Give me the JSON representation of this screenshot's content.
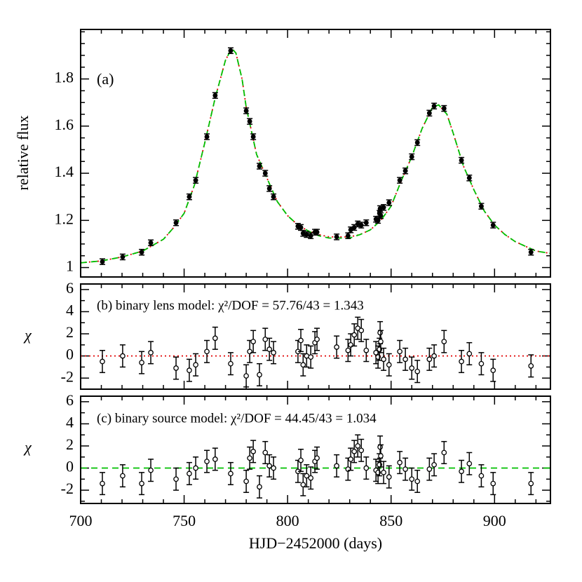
{
  "chart_data": [
    {
      "type": "errorbar",
      "ylabel": "relative flux",
      "annotation": "(a)",
      "marker": "filled",
      "color": "#000000",
      "xlim": [
        700,
        927
      ],
      "xticks": [
        700,
        750,
        800,
        850,
        900
      ],
      "xminor": 10,
      "show_xtick_labels": false,
      "ylim": [
        0.96,
        2.01
      ],
      "yticks": [
        1,
        1.2,
        1.4,
        1.6,
        1.8
      ],
      "yminor": 0.05,
      "x": [
        710.5,
        720.3,
        729.5,
        733.9,
        746.1,
        752.5,
        755.6,
        761,
        765,
        772.5,
        780,
        781.7,
        783.4,
        786.4,
        789.2,
        791.2,
        793.2,
        805,
        806.4,
        807.5,
        809.2,
        811.2,
        813.2,
        814.2,
        823.7,
        829.2,
        830.5,
        832.2,
        833.9,
        835.6,
        838,
        842.7,
        843.7,
        844.4,
        844.7,
        845,
        846.4,
        849,
        854.2,
        856.9,
        860,
        862.7,
        868.5,
        870.8,
        875.6,
        884,
        887.8,
        893.6,
        899.3,
        917.6
      ],
      "values": [
        1.025,
        1.045,
        1.065,
        1.105,
        1.19,
        1.3,
        1.37,
        1.555,
        1.73,
        1.92,
        1.665,
        1.62,
        1.555,
        1.43,
        1.4,
        1.335,
        1.3,
        1.175,
        1.17,
        1.145,
        1.14,
        1.135,
        1.15,
        1.15,
        1.13,
        1.135,
        1.16,
        1.17,
        1.185,
        1.18,
        1.19,
        1.205,
        1.2,
        1.23,
        1.25,
        1.22,
        1.255,
        1.275,
        1.37,
        1.41,
        1.47,
        1.53,
        1.655,
        1.685,
        1.675,
        1.455,
        1.38,
        1.26,
        1.18,
        1.065
      ],
      "errors": [
        0.012,
        0.012,
        0.012,
        0.012,
        0.012,
        0.012,
        0.012,
        0.012,
        0.012,
        0.012,
        0.012,
        0.012,
        0.012,
        0.012,
        0.012,
        0.012,
        0.012,
        0.012,
        0.012,
        0.012,
        0.012,
        0.012,
        0.012,
        0.012,
        0.012,
        0.012,
        0.012,
        0.012,
        0.012,
        0.012,
        0.012,
        0.012,
        0.012,
        0.012,
        0.012,
        0.012,
        0.012,
        0.012,
        0.012,
        0.012,
        0.012,
        0.012,
        0.012,
        0.012,
        0.012,
        0.012,
        0.012,
        0.012,
        0.012,
        0.012
      ],
      "model_x": [
        700,
        710,
        720,
        730,
        740,
        745,
        750,
        755,
        760,
        765,
        770,
        773,
        775,
        778,
        780,
        785,
        790,
        795,
        800,
        805,
        810,
        815,
        820,
        830,
        835,
        840,
        845,
        850,
        855,
        860,
        865,
        870,
        873,
        877,
        880,
        885,
        890,
        895,
        900,
        905,
        910,
        920,
        927
      ],
      "models": [
        {
          "color": "#e00000",
          "dash": "dotted",
          "values": [
            1.02,
            1.028,
            1.045,
            1.07,
            1.12,
            1.17,
            1.23,
            1.35,
            1.53,
            1.72,
            1.88,
            1.93,
            1.91,
            1.8,
            1.68,
            1.48,
            1.38,
            1.28,
            1.22,
            1.18,
            1.155,
            1.14,
            1.13,
            1.13,
            1.14,
            1.16,
            1.2,
            1.26,
            1.37,
            1.47,
            1.59,
            1.68,
            1.69,
            1.65,
            1.57,
            1.43,
            1.33,
            1.24,
            1.18,
            1.14,
            1.11,
            1.07,
            1.06
          ]
        },
        {
          "color": "#00c000",
          "dash": "dashed",
          "values": [
            1.02,
            1.028,
            1.045,
            1.07,
            1.12,
            1.17,
            1.23,
            1.35,
            1.53,
            1.72,
            1.88,
            1.93,
            1.91,
            1.8,
            1.68,
            1.48,
            1.38,
            1.28,
            1.22,
            1.18,
            1.155,
            1.135,
            1.125,
            1.125,
            1.14,
            1.16,
            1.2,
            1.26,
            1.37,
            1.47,
            1.59,
            1.68,
            1.69,
            1.65,
            1.57,
            1.43,
            1.33,
            1.24,
            1.18,
            1.14,
            1.11,
            1.07,
            1.06
          ]
        }
      ]
    },
    {
      "type": "errorbar",
      "ylabel": "χ",
      "annotation": "(b) binary lens model: χ²/DOF = 57.76/43 = 1.343",
      "marker": "open",
      "color": "#000000",
      "xlim": [
        700,
        927
      ],
      "xticks": [
        700,
        750,
        800,
        850,
        900
      ],
      "xminor": 10,
      "show_xtick_labels": false,
      "ylim": [
        -3,
        6.5
      ],
      "yticks": [
        -2,
        0,
        2,
        4,
        6
      ],
      "yminor": 1,
      "x": [
        710.5,
        720.3,
        729.5,
        733.9,
        746.1,
        752.5,
        755.6,
        761,
        765,
        772.5,
        780,
        781.7,
        783.4,
        786.4,
        789.2,
        791.2,
        793.2,
        805,
        806.4,
        807.5,
        809.2,
        811.2,
        813.2,
        814.2,
        823.7,
        829.2,
        830.5,
        832.2,
        833.9,
        835.6,
        838,
        842.7,
        843.7,
        844.4,
        844.7,
        845,
        846.4,
        849,
        854.2,
        856.9,
        860,
        862.7,
        868.5,
        870.8,
        875.6,
        884,
        887.8,
        893.6,
        899.3,
        917.6
      ],
      "values": [
        -0.5,
        0,
        -0.6,
        0.3,
        -1.1,
        -1.3,
        -0.8,
        0.4,
        1.6,
        -0.7,
        -1.8,
        0.4,
        1.3,
        -1.7,
        1.5,
        0.6,
        0.3,
        0.4,
        1.4,
        -0.8,
        0,
        -0.1,
        1.2,
        1.5,
        0.8,
        0.5,
        1,
        1.9,
        2.5,
        2.3,
        0.5,
        0.3,
        -0.1,
        0.6,
        2.1,
        1.3,
        -0.3,
        -0.8,
        0.4,
        -0.3,
        -1.1,
        -1.4,
        -0.3,
        0,
        1.3,
        -0.5,
        0.2,
        -0.7,
        -1.3,
        -0.9
      ],
      "errors": [
        1,
        1,
        1,
        1,
        1,
        1,
        1,
        1,
        1,
        1,
        1,
        1,
        1,
        1,
        1,
        1,
        1,
        1,
        1,
        1,
        1,
        1,
        1,
        1,
        1,
        1,
        1,
        1,
        1,
        1,
        1,
        1,
        1,
        1,
        1,
        1,
        1,
        1,
        1,
        1,
        1,
        1,
        1,
        1,
        1,
        1,
        1,
        1,
        1,
        1
      ],
      "zero_line": {
        "value": 0,
        "color": "#e00000",
        "dash": "dotted"
      }
    },
    {
      "type": "errorbar",
      "ylabel": "χ",
      "xlabel": "HJD−2452000 (days)",
      "annotation": "(c) binary source model: χ²/DOF = 44.45/43 = 1.034",
      "marker": "open",
      "color": "#000000",
      "xlim": [
        700,
        927
      ],
      "xticks": [
        700,
        750,
        800,
        850,
        900
      ],
      "xminor": 10,
      "show_xtick_labels": true,
      "ylim": [
        -3.2,
        6.5
      ],
      "yticks": [
        -2,
        0,
        2,
        4,
        6
      ],
      "yminor": 1,
      "x": [
        710.5,
        720.3,
        729.5,
        733.9,
        746.1,
        752.5,
        755.6,
        761,
        765,
        772.5,
        780,
        781.7,
        783.4,
        786.4,
        789.2,
        791.2,
        793.2,
        805,
        806.4,
        807.5,
        809.2,
        811.2,
        813.2,
        814.2,
        823.7,
        829.2,
        830.5,
        832.2,
        833.9,
        835.6,
        838,
        842.7,
        843.7,
        844.4,
        844.7,
        845,
        846.4,
        849,
        854.2,
        856.9,
        860,
        862.7,
        868.5,
        870.8,
        875.6,
        884,
        887.8,
        893.6,
        899.3,
        917.6
      ],
      "values": [
        -1.4,
        -0.7,
        -1.4,
        -0.2,
        -1,
        -0.5,
        0,
        0.6,
        0.8,
        -0.5,
        -1.2,
        0.9,
        1.5,
        -1.7,
        1.4,
        0.2,
        0,
        -0.3,
        0.7,
        -1.5,
        -0.7,
        -0.9,
        0.6,
        0.9,
        0.2,
        -0.1,
        0.8,
        1.5,
        2,
        1.6,
        0,
        -0.2,
        -0.4,
        0.3,
        1.9,
        1.1,
        -0.4,
        -0.8,
        0.5,
        -0.1,
        -1,
        -1.2,
        -0.1,
        0.3,
        1.4,
        -0.3,
        0.4,
        -0.7,
        -1.4,
        -1.4
      ],
      "errors": [
        1,
        1,
        1,
        1,
        1,
        1,
        1,
        1,
        1,
        1,
        1,
        1,
        1,
        1,
        1,
        1,
        1,
        1,
        1,
        1,
        1,
        1,
        1,
        1,
        1,
        1,
        1,
        1,
        1,
        1,
        1,
        1,
        1,
        1,
        1,
        1,
        1,
        1,
        1,
        1,
        1,
        1,
        1,
        1,
        1,
        1,
        1,
        1,
        1,
        1
      ],
      "zero_line": {
        "value": 0,
        "color": "#00c000",
        "dash": "dashed"
      }
    }
  ]
}
